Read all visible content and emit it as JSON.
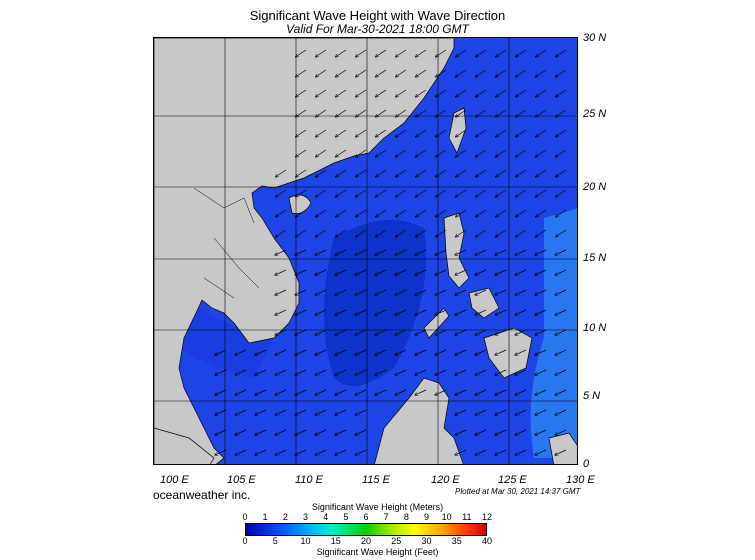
{
  "title": "Significant Wave Height with Wave Direction",
  "subtitle": "Valid For Mar-30-2021 18:00 GMT",
  "map": {
    "latitude_labels": [
      "30 N",
      "25 N",
      "20 N",
      "15 N",
      "10 N",
      "5 N",
      "0"
    ],
    "longitude_labels": [
      "100 E",
      "105 E",
      "110 E",
      "115 E",
      "120 E",
      "125 E",
      "130 E"
    ],
    "land_color": "#c8c8c8",
    "ocean_color": "#1e46e6"
  },
  "footer": {
    "brand": "oceanweather inc.",
    "plotted": "Plotted at Mar 30, 2021 14:37 GMT"
  },
  "colorbar": {
    "meters_title": "Significant Wave Height (Meters)",
    "meters_ticks": [
      "0",
      "1",
      "2",
      "3",
      "4",
      "5",
      "6",
      "7",
      "8",
      "9",
      "10",
      "11",
      "12"
    ],
    "feet_ticks": [
      "0",
      "5",
      "10",
      "15",
      "20",
      "25",
      "30",
      "35",
      "40"
    ],
    "feet_title": "Significant Wave Height (Feet)"
  }
}
